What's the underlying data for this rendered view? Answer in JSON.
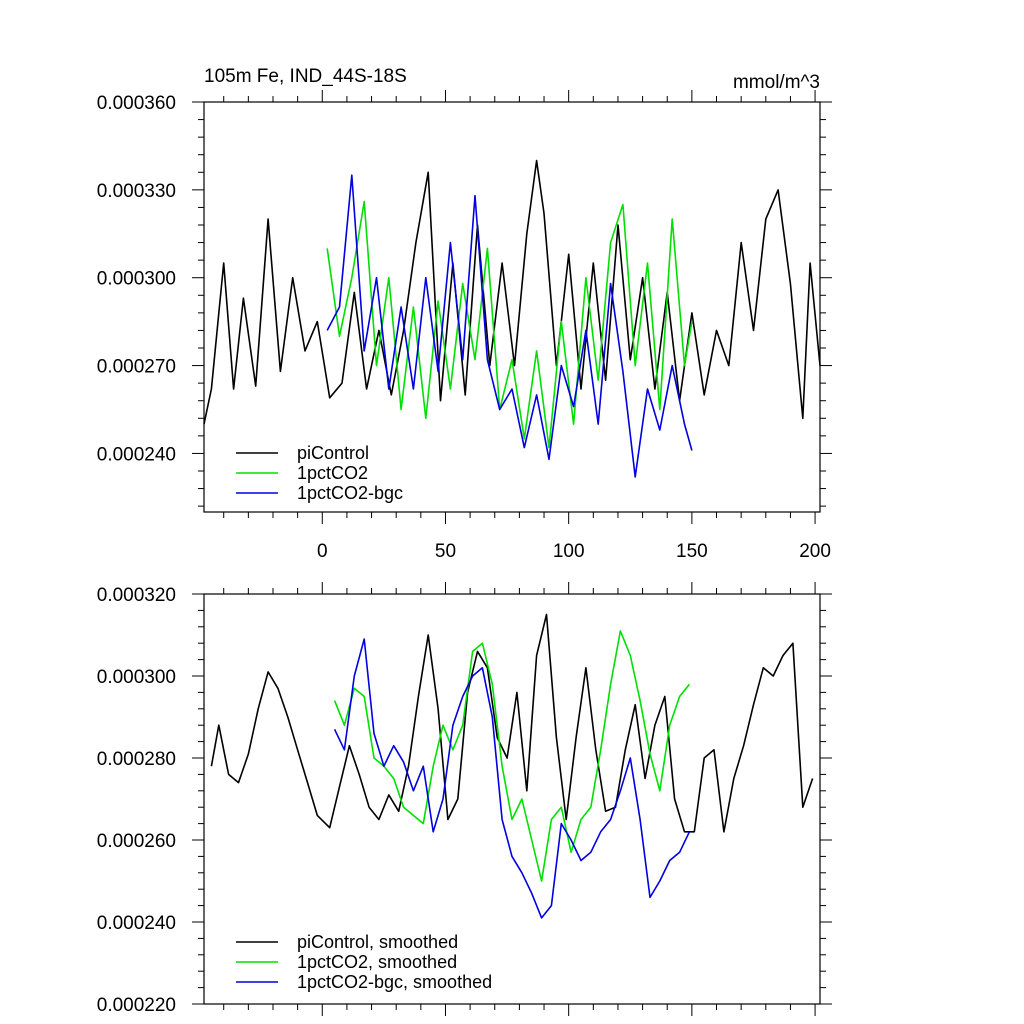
{
  "chart_data": [
    {
      "type": "line",
      "title": "105m Fe, IND_44S-18S",
      "units": "mmol/m^3",
      "xlabel": "",
      "ylabel": "",
      "xlim": [
        -48,
        202
      ],
      "ylim": [
        0.00022,
        0.00036
      ],
      "x_ticks": [
        0,
        50,
        100,
        150,
        200
      ],
      "x_tick_labels": [
        "0",
        "50",
        "100",
        "150",
        "200"
      ],
      "y_ticks": [
        0.00024,
        0.00027,
        0.0003,
        0.00033,
        0.00036
      ],
      "y_tick_labels": [
        "0.000240",
        "0.000270",
        "0.000300",
        "0.000330",
        "0.000360"
      ],
      "legend_position": "bottom-left",
      "series": [
        {
          "name": "piControl",
          "color": "#000000",
          "x": [
            -48,
            -45,
            -40,
            -36,
            -32,
            -27,
            -22,
            -17,
            -12,
            -7,
            -2,
            3,
            8,
            13,
            18,
            23,
            28,
            33,
            38,
            43,
            48,
            53,
            58,
            63,
            68,
            73,
            78,
            83,
            87,
            90,
            95,
            100,
            105,
            110,
            115,
            120,
            125,
            130,
            135,
            140,
            145,
            150,
            155,
            160,
            165,
            170,
            175,
            180,
            185,
            190,
            195,
            198,
            202
          ],
          "values": [
            0.00025,
            0.000262,
            0.000305,
            0.000262,
            0.000293,
            0.000263,
            0.00032,
            0.000268,
            0.0003,
            0.000275,
            0.000285,
            0.000259,
            0.000264,
            0.000295,
            0.000262,
            0.000282,
            0.00026,
            0.000282,
            0.000312,
            0.000336,
            0.000258,
            0.000305,
            0.00026,
            0.000318,
            0.00027,
            0.000305,
            0.00027,
            0.000315,
            0.00034,
            0.000322,
            0.00027,
            0.000308,
            0.000262,
            0.000305,
            0.000265,
            0.000318,
            0.000272,
            0.0003,
            0.000262,
            0.000295,
            0.000258,
            0.000288,
            0.00026,
            0.000282,
            0.00027,
            0.000312,
            0.000282,
            0.00032,
            0.00033,
            0.000298,
            0.000252,
            0.000305,
            0.00027
          ]
        },
        {
          "name": "1pctCO2",
          "color": "#00e000",
          "x": [
            2,
            7,
            12,
            17,
            22,
            27,
            32,
            37,
            42,
            47,
            52,
            57,
            62,
            67,
            72,
            77,
            82,
            87,
            92,
            97,
            102,
            107,
            112,
            117,
            122,
            127,
            132,
            137,
            142,
            147,
            150
          ],
          "values": [
            0.00031,
            0.00028,
            0.0003,
            0.000326,
            0.00027,
            0.0003,
            0.000255,
            0.00029,
            0.000252,
            0.000292,
            0.000262,
            0.000298,
            0.000272,
            0.00031,
            0.000255,
            0.000272,
            0.000245,
            0.000275,
            0.000242,
            0.000285,
            0.00025,
            0.0003,
            0.000265,
            0.000312,
            0.000325,
            0.00027,
            0.000305,
            0.000255,
            0.00032,
            0.00027,
            0.000285
          ]
        },
        {
          "name": "1pctCO2-bgc",
          "color": "#0000e0",
          "x": [
            2,
            7,
            12,
            17,
            22,
            27,
            32,
            37,
            42,
            47,
            52,
            57,
            62,
            67,
            72,
            77,
            82,
            87,
            92,
            97,
            102,
            107,
            112,
            117,
            122,
            127,
            132,
            137,
            142,
            147,
            150
          ],
          "values": [
            0.000282,
            0.00029,
            0.000335,
            0.000275,
            0.0003,
            0.000262,
            0.00029,
            0.000262,
            0.0003,
            0.000268,
            0.000312,
            0.000272,
            0.000328,
            0.000272,
            0.000255,
            0.000262,
            0.000242,
            0.00026,
            0.000238,
            0.00027,
            0.000256,
            0.000282,
            0.00025,
            0.000298,
            0.000268,
            0.000232,
            0.000262,
            0.000248,
            0.00027,
            0.00025,
            0.000241
          ]
        }
      ]
    },
    {
      "type": "line",
      "title": "",
      "xlabel": "",
      "ylabel": "",
      "xlim": [
        -48,
        202
      ],
      "ylim": [
        0.00022,
        0.00032
      ],
      "x_ticks": [
        0,
        50,
        100,
        150,
        200
      ],
      "x_tick_labels": [],
      "y_ticks": [
        0.00022,
        0.00024,
        0.00026,
        0.00028,
        0.0003,
        0.00032
      ],
      "y_tick_labels": [
        "0.000220",
        "0.000240",
        "0.000260",
        "0.000280",
        "0.000300",
        "0.000320"
      ],
      "legend_position": "bottom-left",
      "series": [
        {
          "name": "piControl, smoothed",
          "color": "#000000",
          "x": [
            -45,
            -42,
            -38,
            -34,
            -30,
            -26,
            -22,
            -18,
            -14,
            -10,
            -6,
            -2,
            3,
            7,
            11,
            15,
            19,
            23,
            27,
            31,
            35,
            39,
            43,
            47,
            51,
            55,
            59,
            63,
            67,
            71,
            75,
            79,
            83,
            87,
            91,
            95,
            99,
            103,
            107,
            111,
            115,
            119,
            123,
            127,
            131,
            135,
            139,
            143,
            147,
            151,
            155,
            159,
            163,
            167,
            171,
            175,
            179,
            183,
            187,
            191,
            195,
            199
          ],
          "values": [
            0.000278,
            0.000288,
            0.000276,
            0.000274,
            0.000281,
            0.000292,
            0.000301,
            0.000297,
            0.00029,
            0.000282,
            0.000274,
            0.000266,
            0.000263,
            0.000273,
            0.000283,
            0.000276,
            0.000268,
            0.000265,
            0.000271,
            0.000267,
            0.000278,
            0.000295,
            0.00031,
            0.000292,
            0.000265,
            0.00027,
            0.000296,
            0.000306,
            0.000302,
            0.000285,
            0.00028,
            0.000296,
            0.000272,
            0.000305,
            0.000315,
            0.000285,
            0.000265,
            0.000285,
            0.000302,
            0.000282,
            0.000267,
            0.000268,
            0.000282,
            0.000293,
            0.000275,
            0.000288,
            0.000295,
            0.00027,
            0.000262,
            0.000262,
            0.00028,
            0.000282,
            0.000262,
            0.000275,
            0.000283,
            0.000293,
            0.000302,
            0.0003,
            0.000305,
            0.000308,
            0.000268,
            0.000275
          ]
        },
        {
          "name": "1pctCO2, smoothed",
          "color": "#00e000",
          "x": [
            5,
            9,
            13,
            17,
            21,
            25,
            29,
            33,
            37,
            41,
            45,
            49,
            53,
            57,
            61,
            65,
            69,
            73,
            77,
            81,
            85,
            89,
            93,
            97,
            101,
            105,
            109,
            113,
            117,
            121,
            125,
            129,
            133,
            137,
            141,
            145,
            149
          ],
          "values": [
            0.000294,
            0.000288,
            0.000297,
            0.000295,
            0.00028,
            0.000278,
            0.000275,
            0.000268,
            0.000266,
            0.000264,
            0.000278,
            0.000288,
            0.000282,
            0.000288,
            0.000306,
            0.000308,
            0.000298,
            0.000278,
            0.000265,
            0.00027,
            0.00026,
            0.00025,
            0.000265,
            0.000268,
            0.000257,
            0.000265,
            0.000268,
            0.000282,
            0.000298,
            0.000311,
            0.000305,
            0.000294,
            0.000281,
            0.000272,
            0.000288,
            0.000295,
            0.000298
          ]
        },
        {
          "name": "1pctCO2-bgc, smoothed",
          "color": "#0000e0",
          "x": [
            5,
            9,
            13,
            17,
            21,
            25,
            29,
            33,
            37,
            41,
            45,
            49,
            53,
            57,
            61,
            65,
            69,
            73,
            77,
            81,
            85,
            89,
            93,
            97,
            101,
            105,
            109,
            113,
            117,
            121,
            125,
            129,
            133,
            137,
            141,
            145,
            149
          ],
          "values": [
            0.000287,
            0.000282,
            0.0003,
            0.000309,
            0.000286,
            0.000278,
            0.000283,
            0.000279,
            0.000272,
            0.000278,
            0.000262,
            0.00027,
            0.000288,
            0.000295,
            0.0003,
            0.000302,
            0.00029,
            0.000265,
            0.000256,
            0.000252,
            0.000247,
            0.000241,
            0.000244,
            0.000264,
            0.00026,
            0.000255,
            0.000257,
            0.000262,
            0.000265,
            0.000272,
            0.00028,
            0.000265,
            0.000246,
            0.00025,
            0.000255,
            0.000257,
            0.000262
          ]
        }
      ]
    }
  ]
}
